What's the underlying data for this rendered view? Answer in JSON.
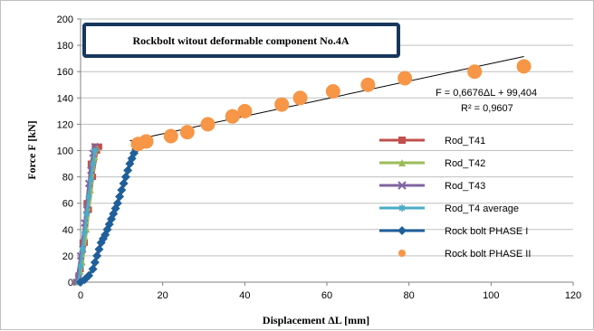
{
  "chart_data": {
    "type": "scatter",
    "title": "Rockbolt witout deformable component No.4A",
    "xlabel": "Displacement ΔL [mm]",
    "ylabel": "Force F [kN]",
    "xlim": [
      0,
      120
    ],
    "ylim": [
      0,
      200
    ],
    "xticks": [
      0,
      20,
      40,
      60,
      80,
      100,
      120
    ],
    "yticks": [
      0,
      20,
      40,
      60,
      80,
      100,
      120,
      140,
      160,
      180,
      200
    ],
    "grid": "horizontal",
    "legend_position": "right",
    "trendline": {
      "slope": 0.6676,
      "intercept": 99.404,
      "x_range": [
        12,
        108
      ],
      "equation_label": "F = 0,6676ΔL + 99,404",
      "r2_label": "R² = 0,9607"
    },
    "series": [
      {
        "name": "Rod_T41",
        "color": "#c0504d",
        "marker": "square",
        "x": [
          -1,
          0,
          1,
          2,
          3,
          4,
          4.5,
          3.5,
          2.5,
          1.5,
          0.5,
          -0.5
        ],
        "y": [
          0,
          10,
          30,
          55,
          80,
          100,
          103,
          103,
          90,
          60,
          30,
          5
        ]
      },
      {
        "name": "Rod_T42",
        "color": "#9bbb59",
        "marker": "triangle",
        "x": [
          -0.5,
          0.5,
          1.5,
          2.5,
          3.5,
          4,
          3,
          2,
          1,
          0
        ],
        "y": [
          0,
          15,
          40,
          70,
          95,
          102,
          95,
          65,
          35,
          8
        ]
      },
      {
        "name": "Rod_T43",
        "color": "#8064a2",
        "marker": "x",
        "x": [
          -1,
          0,
          1,
          2,
          3,
          3.5,
          2.5,
          1.5,
          0.5,
          -0.5
        ],
        "y": [
          0,
          20,
          45,
          75,
          98,
          103,
          85,
          55,
          25,
          3
        ]
      },
      {
        "name": "Rod_T4 average",
        "color": "#4bacc6",
        "marker": "star",
        "x": [
          -0.5,
          0,
          0.5,
          1,
          1.5,
          2,
          2.5,
          3,
          3.5
        ],
        "y": [
          0,
          12,
          25,
          38,
          52,
          65,
          78,
          90,
          100
        ]
      },
      {
        "name": "Rock bolt PHASE I",
        "color": "#1f5f9a",
        "marker": "diamond",
        "x": [
          0,
          1,
          2,
          3,
          3.5,
          4,
          4.5,
          5,
          5.5,
          6,
          6.5,
          7,
          7.5,
          8,
          8.5,
          9,
          9.5,
          10,
          10.5,
          11,
          11.5,
          12,
          12.5,
          13,
          13.5,
          14,
          14.5
        ],
        "y": [
          0,
          2,
          5,
          10,
          15,
          20,
          25,
          30,
          33,
          36,
          40,
          44,
          48,
          52,
          56,
          60,
          65,
          70,
          75,
          80,
          85,
          90,
          94,
          98,
          101,
          103,
          105
        ]
      },
      {
        "name": "Rock bolt PHASE II",
        "color": "#f79646",
        "marker": "circle",
        "x": [
          14,
          16,
          22,
          26,
          31,
          37,
          40,
          49,
          53.5,
          61.5,
          70,
          79,
          96,
          108
        ],
        "y": [
          105,
          107,
          111,
          114,
          120,
          126,
          130,
          135,
          140,
          145,
          150,
          155,
          160,
          164
        ]
      }
    ]
  }
}
